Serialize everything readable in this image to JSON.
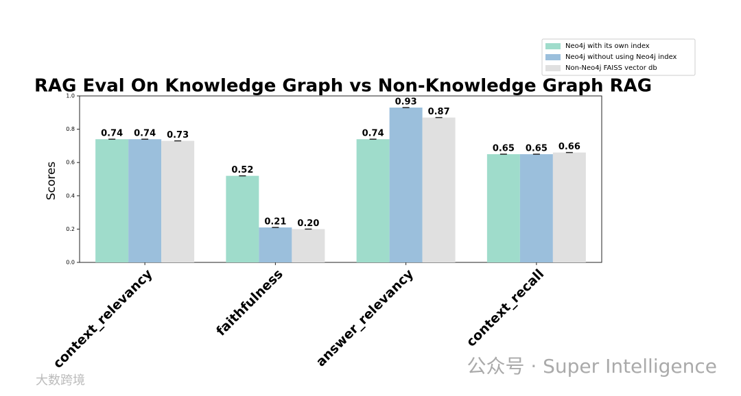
{
  "chart_data": {
    "type": "bar",
    "title": "RAG Eval On Knowledge Graph vs Non-Knowledge Graph RAG",
    "y_label": "Scores",
    "categories": [
      "context_relevancy",
      "faithfulness",
      "answer_relevancy",
      "context_recall"
    ],
    "series": [
      {
        "name": "Neo4j with its own index",
        "color": "#9fdccb",
        "values": [
          0.74,
          0.52,
          0.74,
          0.65
        ],
        "value_labels": [
          "0.74",
          "0.52",
          "0.74",
          "0.65"
        ]
      },
      {
        "name": "Neo4j without using Neo4j index",
        "color": "#9bbfdc",
        "values": [
          0.74,
          0.21,
          0.93,
          0.65
        ],
        "value_labels": [
          "0.74",
          "0.21",
          "0.93",
          "0.65"
        ]
      },
      {
        "name": "Non-Neo4j FAISS vector db",
        "color": "#e0e0e0",
        "values": [
          0.73,
          0.2,
          0.87,
          0.66
        ],
        "value_labels": [
          "0.73",
          "0.20",
          "0.87",
          "0.66"
        ]
      }
    ],
    "ylim": [
      0,
      1
    ],
    "yticks": [
      {
        "value": 0,
        "label": "0.0"
      },
      0.2,
      0.4,
      0.6,
      0.8,
      {
        "value": 1,
        "label": "1.0"
      }
    ],
    "grid": false,
    "legend": "top-right"
  },
  "watermark": {
    "main": "公众号 · Super Intelligence",
    "corner": "大数跨境"
  }
}
